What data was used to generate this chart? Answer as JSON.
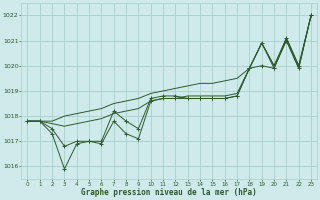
{
  "title": "Graphe pression niveau de la mer (hPa)",
  "background_color": "#ceeaea",
  "grid_color": "#aacece",
  "line_color": "#2d5a2d",
  "xlim": [
    -0.5,
    23.5
  ],
  "ylim": [
    1015.5,
    1022.5
  ],
  "yticks": [
    1016,
    1017,
    1018,
    1019,
    1020,
    1021,
    1022
  ],
  "xticks": [
    0,
    1,
    2,
    3,
    4,
    5,
    6,
    7,
    8,
    9,
    10,
    11,
    12,
    13,
    14,
    15,
    16,
    17,
    18,
    19,
    20,
    21,
    22,
    23
  ],
  "series": [
    {
      "x": [
        0,
        1,
        2,
        3,
        4,
        5,
        6,
        7,
        8,
        9,
        10,
        11,
        12,
        13,
        14,
        15,
        16,
        17,
        18,
        19,
        20,
        21,
        22,
        23
      ],
      "y": [
        1017.8,
        1017.8,
        1017.8,
        1018.0,
        1018.1,
        1018.2,
        1018.3,
        1018.5,
        1018.6,
        1018.7,
        1018.9,
        1019.0,
        1019.1,
        1019.2,
        1019.3,
        1019.3,
        1019.4,
        1019.5,
        1019.9,
        1020.9,
        1020.0,
        1021.1,
        1020.0,
        1022.0
      ]
    },
    {
      "x": [
        0,
        1,
        2,
        3,
        4,
        5,
        6,
        7,
        8,
        9,
        10,
        11,
        12,
        13,
        14,
        15,
        16,
        17,
        18,
        19,
        20,
        21,
        22,
        23
      ],
      "y": [
        1017.8,
        1017.8,
        1017.7,
        1017.6,
        1017.7,
        1017.8,
        1017.9,
        1018.1,
        1018.2,
        1018.3,
        1018.6,
        1018.7,
        1018.7,
        1018.8,
        1018.8,
        1018.8,
        1018.8,
        1018.9,
        1019.9,
        1020.9,
        1020.0,
        1021.0,
        1019.9,
        1022.0
      ]
    },
    {
      "x": [
        0,
        1,
        2,
        3,
        4,
        5,
        6,
        7,
        8,
        9,
        10,
        11,
        12,
        13,
        14,
        15,
        16,
        17,
        18,
        19,
        20,
        21,
        22,
        23
      ],
      "y": [
        1017.8,
        1017.8,
        1017.5,
        1016.8,
        1017.0,
        1017.0,
        1017.0,
        1018.2,
        1017.8,
        1017.5,
        1018.7,
        1018.8,
        1018.8,
        1018.7,
        1018.7,
        1018.7,
        1018.7,
        1018.8,
        1019.9,
        1020.9,
        1019.9,
        1021.1,
        1020.0,
        1022.0
      ],
      "marker": "+"
    },
    {
      "x": [
        0,
        1,
        2,
        3,
        4,
        5,
        6,
        7,
        8,
        9,
        10,
        11,
        12,
        13,
        14,
        15,
        16,
        17,
        18,
        19,
        20,
        21,
        22,
        23
      ],
      "y": [
        1017.8,
        1017.8,
        1017.3,
        1015.9,
        1016.9,
        1017.0,
        1016.9,
        1017.8,
        1017.3,
        1017.1,
        1018.6,
        1018.7,
        1018.7,
        1018.7,
        1018.7,
        1018.7,
        1018.7,
        1018.8,
        1019.9,
        1020.0,
        1019.9,
        1021.0,
        1019.9,
        1022.0
      ],
      "marker": "+"
    }
  ]
}
